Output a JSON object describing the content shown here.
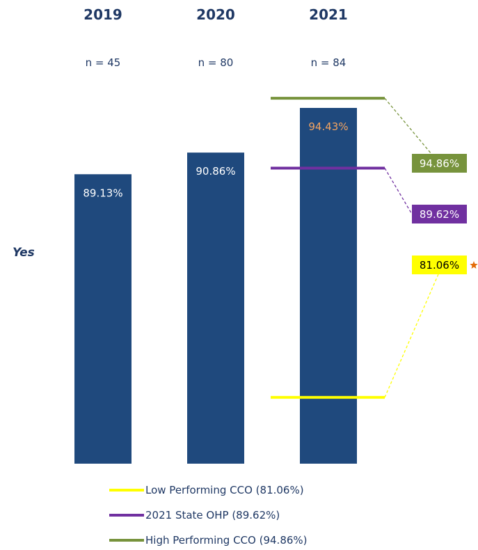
{
  "chart_data": {
    "type": "bar",
    "row_label": "Yes",
    "categories": [
      "2019",
      "2020",
      "2021"
    ],
    "sample_sizes": [
      "n = 45",
      "n = 80",
      "n = 84"
    ],
    "values": [
      89.13,
      90.86,
      94.43
    ],
    "value_labels": [
      "89.13%",
      "90.86%",
      "94.43%"
    ],
    "ylim": [
      66,
      96
    ],
    "bar_color": "#1f497d",
    "bar_label_colors": [
      "#ffffff",
      "#ffffff",
      "#f4a460"
    ],
    "reference_lines": [
      {
        "key": "high",
        "value": 94.86,
        "label": "94.86%",
        "legend": "High Performing CCO (94.86%)",
        "color": "#77933c",
        "text_color": "#ffffff",
        "line_y": 95.2
      },
      {
        "key": "state",
        "value": 89.62,
        "label": "89.62%",
        "legend": "2021 State OHP (89.62%)",
        "color": "#7030a0",
        "text_color": "#ffffff",
        "line_y": 89.62
      },
      {
        "key": "low",
        "value": 81.06,
        "label": "81.06%",
        "legend": "Low Performing CCO (81.06%)",
        "color": "#ffff00",
        "text_color": "#000000",
        "line_y": 71.3,
        "marker": "star"
      }
    ],
    "legend_order": [
      "low",
      "state",
      "high"
    ],
    "star_color": "#e36c09"
  }
}
